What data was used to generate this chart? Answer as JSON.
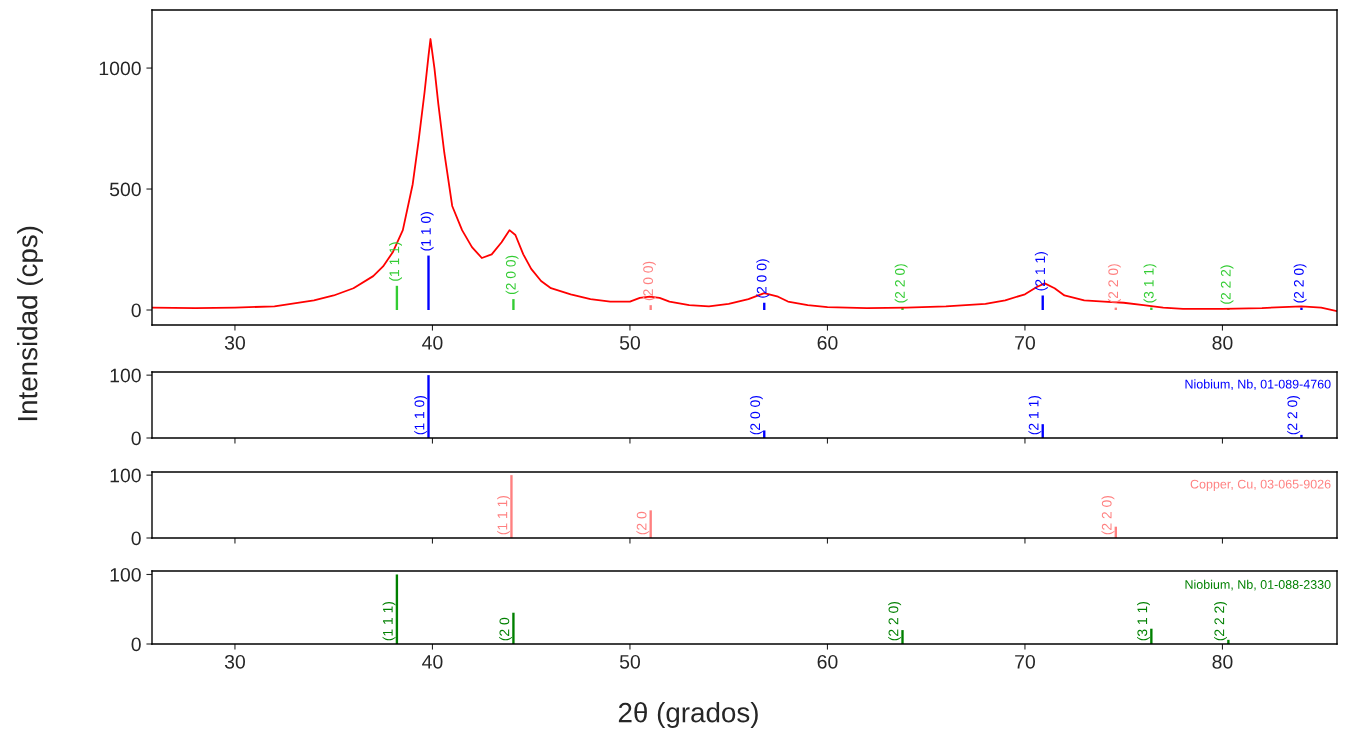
{
  "chart_data": [
    {
      "type": "line",
      "ylabel": "Intensidad (cps)",
      "xlim": [
        25.8,
        85.8
      ],
      "ylim": [
        -62,
        1240
      ],
      "xticks": [
        30,
        40,
        50,
        60,
        70,
        80
      ],
      "yticks": [
        0,
        500,
        1000
      ],
      "grid": false,
      "legend": false,
      "series": [
        {
          "type": "line",
          "color": "#ff0000",
          "x": [
            25.8,
            28,
            30,
            32,
            34,
            35,
            36,
            37,
            37.5,
            38,
            38.5,
            39,
            39.3,
            39.6,
            39.8,
            39.9,
            40.1,
            40.3,
            40.6,
            41,
            41.5,
            42,
            42.5,
            43,
            43.5,
            43.9,
            44.2,
            44.6,
            45,
            45.5,
            46,
            47,
            48,
            49,
            50,
            50.5,
            51,
            51.5,
            52,
            53,
            54,
            55,
            56,
            56.8,
            57.5,
            58,
            59,
            60,
            62,
            64,
            66,
            68,
            69,
            70,
            70.6,
            71,
            71.5,
            72,
            73,
            74,
            75,
            76,
            77,
            78,
            80,
            82,
            84,
            85,
            85.8
          ],
          "values": [
            10,
            8,
            10,
            15,
            40,
            60,
            90,
            140,
            180,
            240,
            330,
            520,
            700,
            900,
            1050,
            1120,
            1000,
            850,
            650,
            430,
            330,
            260,
            215,
            230,
            280,
            330,
            310,
            230,
            170,
            120,
            90,
            65,
            45,
            35,
            35,
            50,
            55,
            50,
            35,
            20,
            15,
            25,
            45,
            70,
            55,
            35,
            20,
            12,
            8,
            10,
            15,
            25,
            40,
            65,
            95,
            110,
            90,
            60,
            40,
            35,
            30,
            20,
            10,
            5,
            5,
            8,
            15,
            10,
            -5
          ]
        },
        {
          "type": "bar",
          "color": "#0000ff",
          "x": [
            39.8,
            56.8,
            70.9,
            84.0
          ],
          "values": [
            225,
            30,
            60,
            10
          ],
          "value_labels": [
            "(1 1 0)",
            "(2 0 0)",
            "(2 1 1)",
            "(2 2 0)"
          ]
        },
        {
          "type": "bar",
          "color": "#ff8080",
          "x": [
            51.05,
            74.6
          ],
          "values": [
            20,
            10
          ],
          "value_labels": [
            "(2 0 0)",
            "(2 2 0)"
          ]
        },
        {
          "type": "bar",
          "color": "#33cc33",
          "x": [
            38.2,
            44.1,
            63.8,
            76.4,
            80.3
          ],
          "values": [
            100,
            45,
            10,
            10,
            5
          ],
          "value_labels": [
            "(1 1 1)",
            "(2 0 0)",
            "(2 2 0)",
            "(3 1 1)",
            "(2 2 2)"
          ]
        }
      ]
    },
    {
      "type": "bar",
      "xlim": [
        25.8,
        85.8
      ],
      "ylim": [
        0,
        105
      ],
      "xticks": [
        30,
        40,
        50,
        60,
        70,
        80
      ],
      "yticks": [
        0,
        100
      ],
      "tick_labels": "y",
      "grid": false,
      "series": [
        {
          "name": "Niobium, Nb, 01-089-4760",
          "color": "#0000ff",
          "x": [
            39.8,
            56.8,
            70.9,
            84.0
          ],
          "values": [
            100,
            12,
            22,
            5
          ],
          "value_labels": [
            "(1 1 0)",
            "(2 0 0)",
            "(2 1 1)",
            "(2 2 0)"
          ]
        }
      ]
    },
    {
      "type": "bar",
      "xlim": [
        25.8,
        85.8
      ],
      "ylim": [
        0,
        105
      ],
      "xticks": [
        30,
        40,
        50,
        60,
        70,
        80
      ],
      "yticks": [
        0,
        100
      ],
      "tick_labels": "y",
      "grid": false,
      "series": [
        {
          "name": "Copper, Cu, 03-065-9026",
          "color": "#ff8080",
          "x": [
            44.0,
            51.05,
            74.6
          ],
          "values": [
            100,
            44,
            18
          ],
          "value_labels": [
            "(1 1 1)",
            "(2 0",
            "(2 2 0)"
          ]
        }
      ]
    },
    {
      "type": "bar",
      "xlabel": "2θ (grados)",
      "xlim": [
        25.8,
        85.8
      ],
      "ylim": [
        0,
        105
      ],
      "xticks": [
        30,
        40,
        50,
        60,
        70,
        80
      ],
      "yticks": [
        0,
        100
      ],
      "grid": false,
      "series": [
        {
          "name": "Niobium, Nb, 01-088-2330",
          "color": "#008000",
          "x": [
            38.2,
            44.1,
            63.8,
            76.4,
            80.3
          ],
          "values": [
            100,
            45,
            20,
            22,
            6
          ],
          "value_labels": [
            "(1 1 1)",
            "(2 0",
            "(2 2 0)",
            "(3 1 1)",
            "(2 2 2)"
          ]
        }
      ]
    }
  ]
}
